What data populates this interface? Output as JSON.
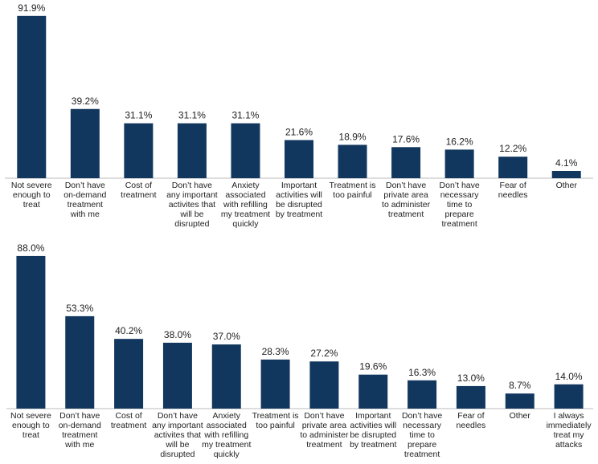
{
  "chart_data": [
    {
      "type": "bar",
      "color": "#12375e",
      "ylim": [
        0,
        100
      ],
      "categories": [
        "Not severe\nenough to\ntreat",
        "Don’t have\non-demand\ntreatment\nwith me",
        "Cost of\ntreatment",
        "Don’t have\nany important\nactivites that\nwill be\ndisrupted",
        "Anxiety\nassociated\nwith refilling\nmy treatment\nquickly",
        "Important\nactivities will\nbe disrupted\nby treatment",
        "Treatment is\ntoo painful",
        "Don’t have\nprivate area\nto administer\ntreatment",
        "Don’t have\nnecessary\ntime to\nprepare\ntreatment",
        "Fear of\nneedles",
        "Other"
      ],
      "values": [
        91.9,
        39.2,
        31.1,
        31.1,
        31.1,
        21.6,
        18.9,
        17.6,
        16.2,
        12.2,
        4.1
      ],
      "value_labels": [
        "91.9%",
        "39.2%",
        "31.1%",
        "31.1%",
        "31.1%",
        "21.6%",
        "18.9%",
        "17.6%",
        "16.2%",
        "12.2%",
        "4.1%"
      ]
    },
    {
      "type": "bar",
      "color": "#12375e",
      "ylim": [
        0,
        100
      ],
      "categories": [
        "Not severe\nenough to\ntreat",
        "Don’t have\non-demand\ntreatment\nwith me",
        "Cost of\ntreatment",
        "Don’t have\nany important\nactivites that\nwill be\ndisrupted",
        "Anxiety\nassociated\nwith refilling\nmy treatment\nquickly",
        "Treatment is\ntoo painful",
        "Don’t have\nprivate area\nto administer\ntreatment",
        "Important\nactivities will\nbe disrupted\nby treatment",
        "Don’t have\nnecessary\ntime to\nprepare\ntreatment",
        "Fear of\nneedles",
        "Other",
        "I always\nimmediately\ntreat my\nattacks"
      ],
      "values": [
        88.0,
        53.3,
        40.2,
        38.0,
        37.0,
        28.3,
        27.2,
        19.6,
        16.3,
        13.0,
        8.7,
        14.0
      ],
      "value_labels": [
        "88.0%",
        "53.3%",
        "40.2%",
        "38.0%",
        "37.0%",
        "28.3%",
        "27.2%",
        "19.6%",
        "16.3%",
        "13.0%",
        "8.7%",
        "14.0%"
      ]
    }
  ]
}
